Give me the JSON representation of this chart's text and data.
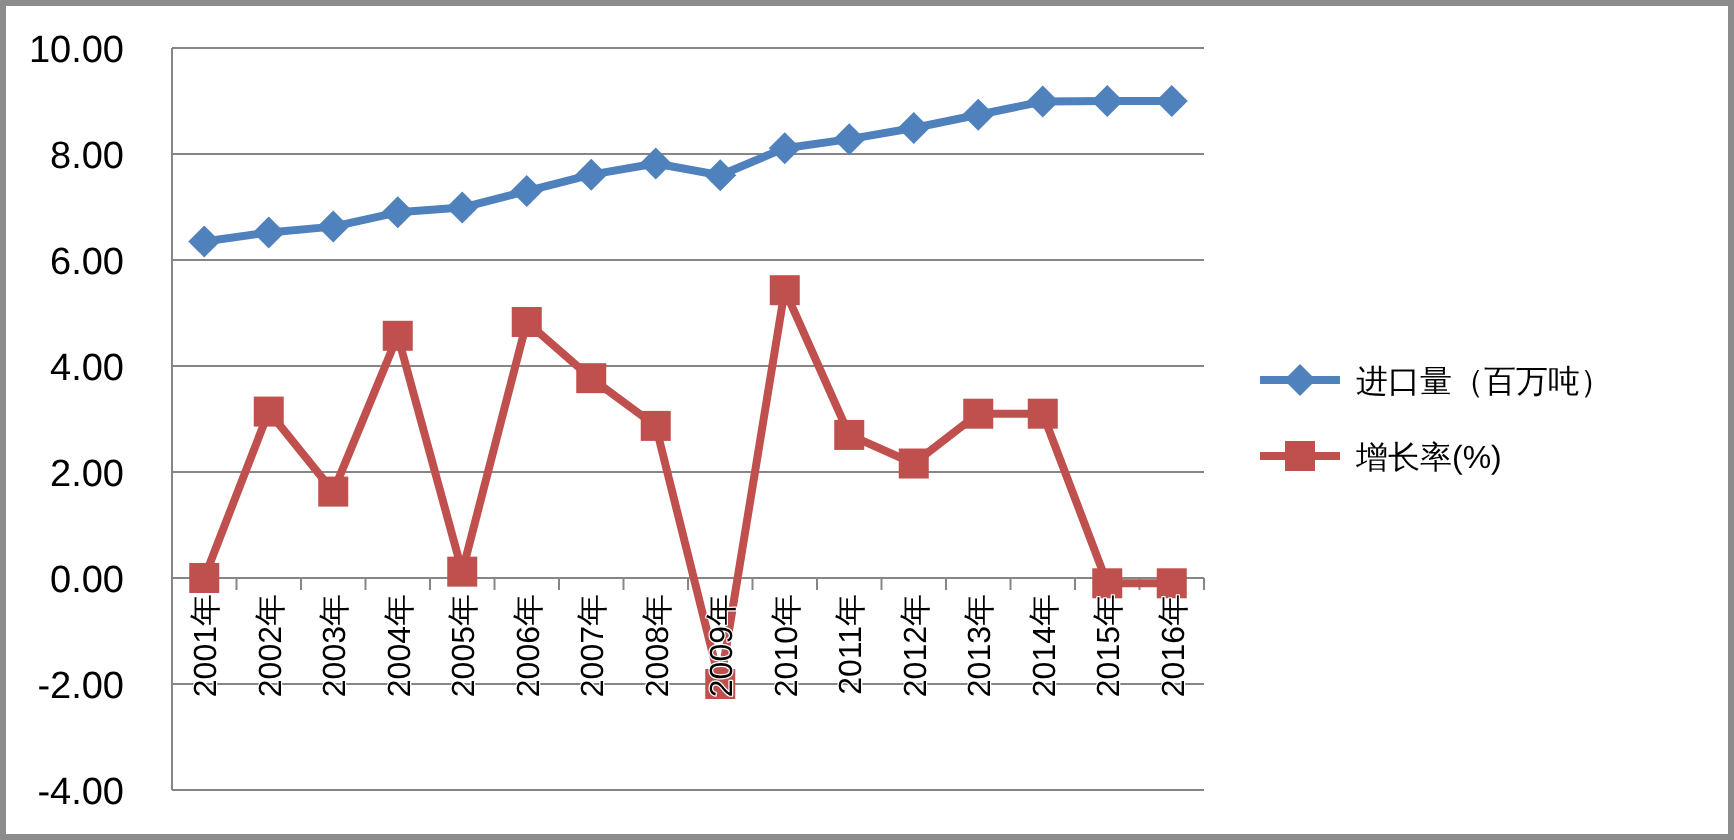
{
  "chart_data": {
    "type": "line",
    "categories": [
      "2001年",
      "2002年",
      "2003年",
      "2004年",
      "2005年",
      "2006年",
      "2007年",
      "2008年",
      "2009年",
      "2010年",
      "2011年",
      "2012年",
      "2013年",
      "2014年",
      "2015年",
      "2016年"
    ],
    "series": [
      {
        "name": "进口量（百万吨）",
        "color": "#4f81bd",
        "marker": "diamond",
        "values": [
          6.35,
          6.52,
          6.63,
          6.9,
          6.99,
          7.3,
          7.61,
          7.82,
          7.6,
          8.11,
          8.28,
          8.49,
          8.74,
          8.99,
          9.0,
          9.0
        ]
      },
      {
        "name": "增长率(%)",
        "color": "#c0504d",
        "marker": "square",
        "values": [
          0.0,
          3.14,
          1.63,
          4.57,
          0.12,
          4.83,
          3.77,
          2.87,
          -2.0,
          5.43,
          2.7,
          2.16,
          3.1,
          3.1,
          -0.1,
          -0.1
        ]
      }
    ],
    "ylim": [
      -4,
      10
    ],
    "yticks": [
      {
        "value": -4,
        "label": "-4.00"
      },
      {
        "value": -2,
        "label": "-2.00"
      },
      {
        "value": 0,
        "label": "0.00"
      },
      {
        "value": 2,
        "label": "2.00"
      },
      {
        "value": 4,
        "label": "4.00"
      },
      {
        "value": 6,
        "label": "6.00"
      },
      {
        "value": 8,
        "label": "8.00"
      },
      {
        "value": 10,
        "label": "10.00"
      }
    ],
    "grid": "y",
    "legend": "right",
    "line_style": "solid"
  }
}
